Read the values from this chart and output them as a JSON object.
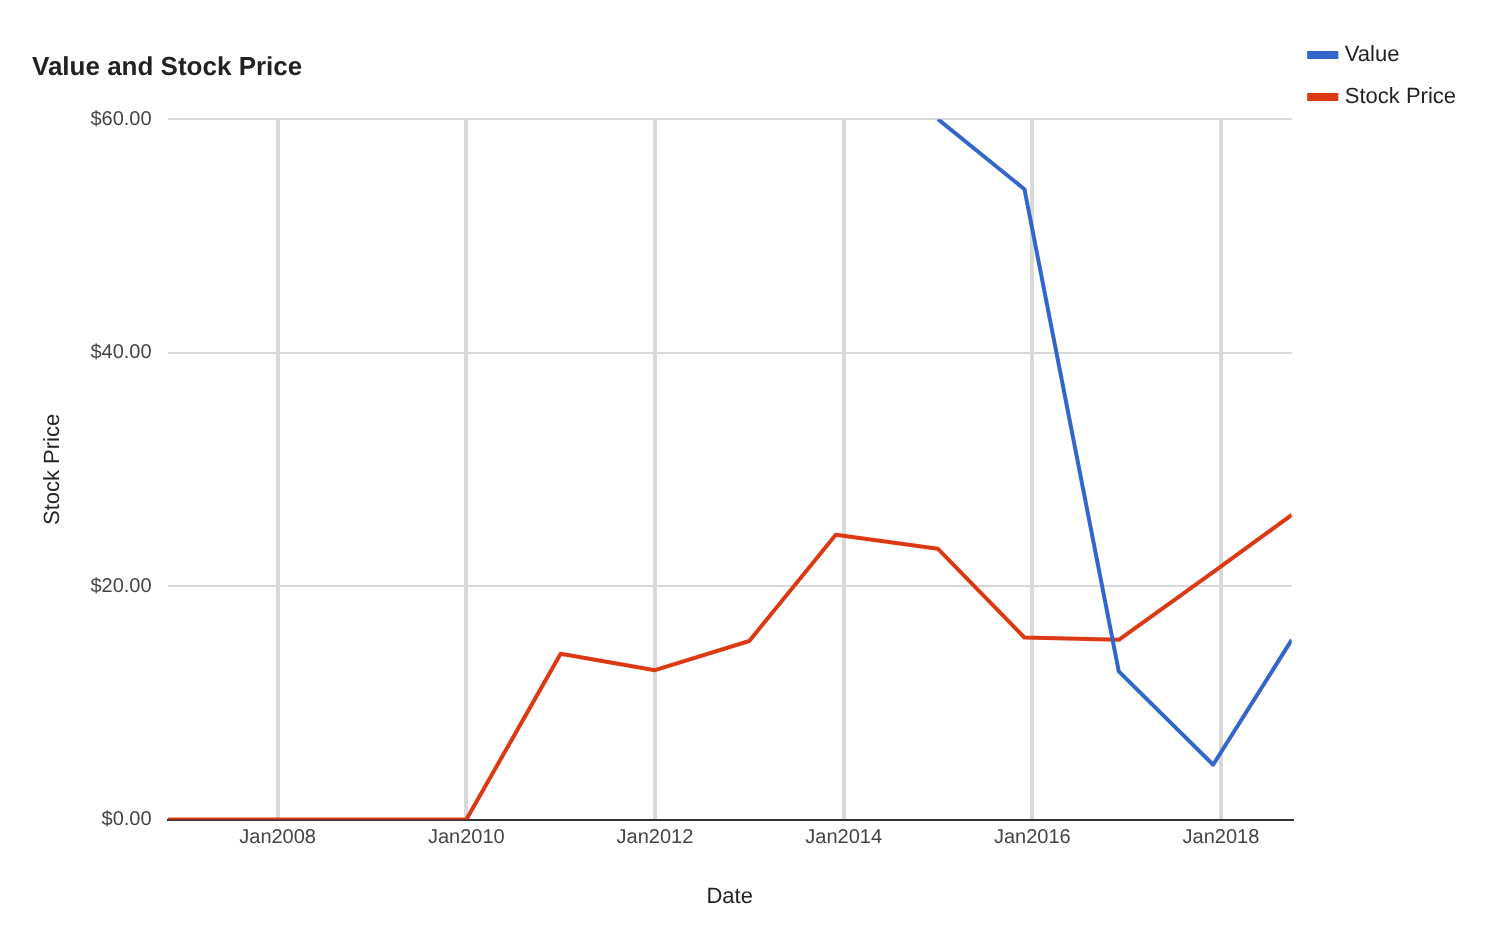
{
  "chart_data": {
    "type": "line",
    "title": "Value and Stock Price",
    "xlabel": "Date",
    "ylabel": "Stock Price",
    "xlim": [
      "2006-11",
      "2018-10"
    ],
    "xticks": [
      {
        "value": "2008-01",
        "label": "Jan2008"
      },
      {
        "value": "2010-01",
        "label": "Jan2010"
      },
      {
        "value": "2012-01",
        "label": "Jan2012"
      },
      {
        "value": "2014-01",
        "label": "Jan2014"
      },
      {
        "value": "2016-01",
        "label": "Jan2016"
      },
      {
        "value": "2018-01",
        "label": "Jan2018"
      }
    ],
    "ylim": [
      0,
      60
    ],
    "yticks": [
      {
        "value": 0,
        "label": "$0.00"
      },
      {
        "value": 20,
        "label": "$20.00"
      },
      {
        "value": 40,
        "label": "$40.00"
      },
      {
        "value": 60,
        "label": "$60.00"
      }
    ],
    "series": [
      {
        "name": "Value",
        "color": "#3366cc",
        "x": [
          "2015-01",
          "2015-12",
          "2016-12",
          "2017-12",
          "2018-10"
        ],
        "values": [
          60,
          54,
          12.7,
          4.7,
          15.4
        ]
      },
      {
        "name": "Stock Price",
        "color": "#dc3912",
        "x": [
          "2006-11",
          "2010-01",
          "2011-01",
          "2012-01",
          "2013-01",
          "2013-12",
          "2015-01",
          "2015-12",
          "2016-12",
          "2017-12",
          "2018-10"
        ],
        "values": [
          0,
          0,
          14.2,
          12.8,
          15.3,
          24.4,
          23.2,
          15.6,
          15.4,
          21.2,
          26.1
        ]
      }
    ],
    "grid": true,
    "legend": "right",
    "marker": "none",
    "line_style": "solid"
  }
}
